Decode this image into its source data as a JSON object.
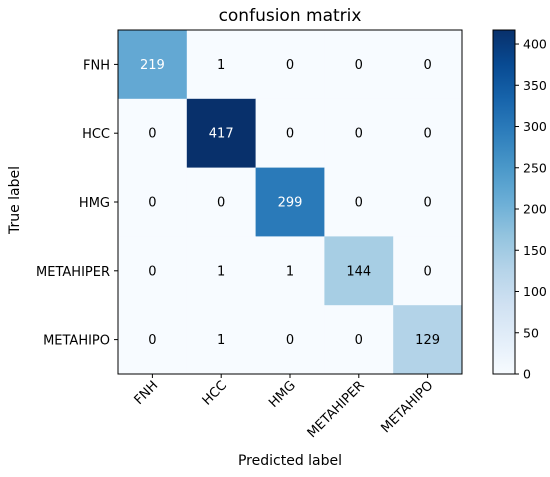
{
  "chart_data": {
    "type": "heatmap",
    "title": "confusion matrix",
    "xlabel": "Predicted label",
    "ylabel": "True label",
    "x_categories": [
      "FNH",
      "HCC",
      "HMG",
      "METAHIPER",
      "METAHIPO"
    ],
    "y_categories": [
      "FNH",
      "HCC",
      "HMG",
      "METAHIPER",
      "METAHIPO"
    ],
    "matrix": [
      [
        219,
        1,
        0,
        0,
        0
      ],
      [
        0,
        417,
        0,
        0,
        0
      ],
      [
        0,
        0,
        299,
        0,
        0
      ],
      [
        0,
        1,
        1,
        144,
        0
      ],
      [
        0,
        1,
        0,
        0,
        129
      ]
    ],
    "colormap": "Blues",
    "colorbar": {
      "min": 0,
      "max": 417,
      "ticks": [
        0,
        50,
        100,
        150,
        200,
        250,
        300,
        350,
        400
      ]
    },
    "colors": {
      "low": "#f7fbff",
      "high": "#08306b"
    }
  }
}
